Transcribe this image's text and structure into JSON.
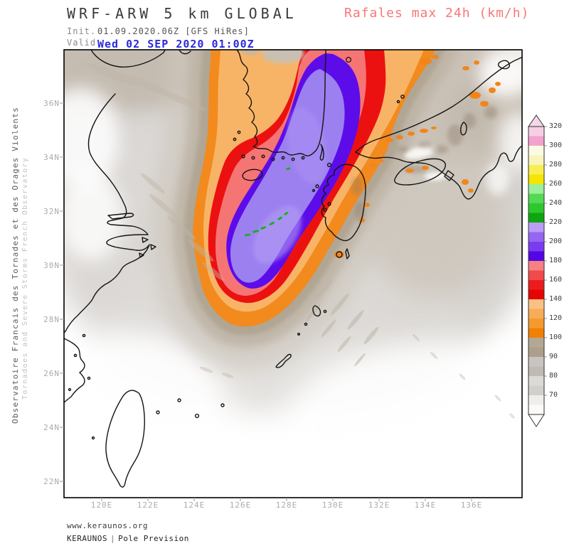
{
  "header": {
    "title": "WRF-ARW 5 km GLOBAL",
    "init_label": "Init.",
    "init_value": "01.09.2020.06Z [GFS HiRes]",
    "valid_label": "Valid.",
    "valid_value": "Wed 02 SEP 2020 01:00Z",
    "valid_color": "#2b2bdd",
    "product_title": "Rafales max 24h (km/h)",
    "product_color": "#f87777"
  },
  "watermark": {
    "line1": "Observatoire Francais des Tornades et des Orages Violents",
    "line2": "Tornadoes and Severe Storms French Observatory"
  },
  "footer": {
    "url": "www.keraunos.org",
    "brand": "KERAUNOS",
    "separator": "|",
    "tagline": "Pole Prevision"
  },
  "map": {
    "x_ticks": [
      "120E",
      "122E",
      "124E",
      "126E",
      "128E",
      "130E",
      "132E",
      "134E",
      "136E"
    ],
    "y_ticks": [
      "36N",
      "34N",
      "32N",
      "30N",
      "28N",
      "26N",
      "24N",
      "22N"
    ]
  },
  "colorbar": {
    "labels": [
      "320",
      "300",
      "280",
      "260",
      "240",
      "220",
      "200",
      "180",
      "160",
      "140",
      "120",
      "100",
      "90",
      "80",
      "70"
    ],
    "segments": [
      {
        "range": "300-320",
        "top": "#f6cfe5",
        "bottom": "#f2a3cd"
      },
      {
        "range": "280-300",
        "top": "#fbfae3",
        "bottom": "#f8f4bc"
      },
      {
        "range": "260-280",
        "top": "#f7ef52",
        "bottom": "#f4e504"
      },
      {
        "range": "240-260",
        "top": "#9cef9c",
        "bottom": "#55d855"
      },
      {
        "range": "220-240",
        "top": "#2fc72f",
        "bottom": "#0ea50e"
      },
      {
        "range": "200-220",
        "top": "#bb9df7",
        "bottom": "#9566ef"
      },
      {
        "range": "180-200",
        "top": "#7a3cf1",
        "bottom": "#5405e4"
      },
      {
        "range": "160-180",
        "top": "#f68181",
        "bottom": "#f14a4a"
      },
      {
        "range": "140-160",
        "top": "#ec1c1c",
        "bottom": "#e60505"
      },
      {
        "range": "120-140",
        "top": "#f9c285",
        "bottom": "#f8ac57"
      },
      {
        "range": "100-120",
        "top": "#f59a2e",
        "bottom": "#f08103"
      },
      {
        "range": "90-100",
        "top": "#b3a896",
        "bottom": "#ac9f8b"
      },
      {
        "range": "80-90",
        "top": "#c8c4bf",
        "bottom": "#bfbab4"
      },
      {
        "range": "70-80",
        "top": "#dcdad7",
        "bottom": "#d3d0cc"
      },
      {
        "range": "<70",
        "top": "#f0eeec",
        "bottom": "#fbfaf9"
      }
    ],
    "arrow_top_color": "#f6d6e8",
    "arrow_bottom_color": "#ffffff"
  },
  "chart_data": {
    "type": "heatmap",
    "title": "Rafales max 24h (km/h)",
    "model": "WRF-ARW 5 km GLOBAL",
    "field": "maximum wind gusts over 24h",
    "units": "km/h",
    "x_ticks": [
      "120E",
      "122E",
      "124E",
      "126E",
      "128E",
      "130E",
      "132E",
      "134E",
      "136E"
    ],
    "y_ticks": [
      "36N",
      "34N",
      "32N",
      "30N",
      "28N",
      "26N",
      "24N",
      "22N"
    ],
    "colorbar_levels": [
      70,
      80,
      90,
      100,
      120,
      140,
      160,
      180,
      200,
      220,
      240,
      260,
      280,
      300,
      320
    ],
    "legend_position": "right",
    "peak_band_kmh": [
      200,
      240
    ],
    "peak_zone": "SW-NE swath of 180-220+ km/h gusts from ~30N/126E across the Korea Strait and South Korea (typhoon track), surrounded by 140-180 km/h (red) and 100-140 km/h (orange) bands; 70-100 km/h (grey/tan) over surrounding seas, Japan and E China; local 100-140 km/h spots over Japanese terrain"
  }
}
